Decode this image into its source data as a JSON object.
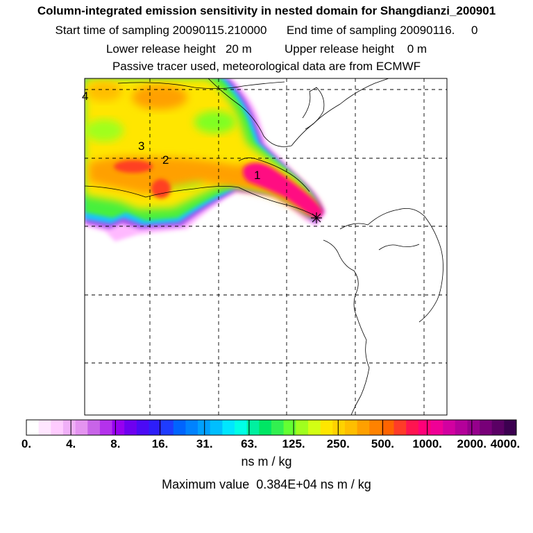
{
  "title": "Column-integrated emission sensitivity in nested domain for Shangdianzi_200901",
  "sampling": {
    "start_label": "Start time of sampling",
    "start_value": "20090115.210000",
    "end_label": "End time of sampling",
    "end_value": "20090116.",
    "end_hour": "0"
  },
  "release": {
    "lower_label": "Lower release height",
    "lower_value": "20 m",
    "upper_label": "Upper release height",
    "upper_value": "0 m"
  },
  "tracer_note": "Passive tracer used, meteorological data are from ECMWF",
  "units": "ns m / kg",
  "max_value_text": "Maximum value  0.384E+04 ns m / kg",
  "chart_data": {
    "type": "heatmap",
    "title": "Column-integrated emission sensitivity in nested domain for Shangdianzi_200901",
    "colorbar": {
      "tick_labels": [
        "0.",
        "4.",
        "8.",
        "16.",
        "31.",
        "63.",
        "125.",
        "250.",
        "500.",
        "1000.",
        "2000.",
        "4000."
      ],
      "units": "ns m / kg",
      "colors": [
        "#ffffff",
        "#ffe6ff",
        "#ffccff",
        "#f0b0f8",
        "#e494f0",
        "#c864e8",
        "#b432ec",
        "#9600f0",
        "#6e00f0",
        "#4b0af5",
        "#2d1efa",
        "#1e3cff",
        "#0064ff",
        "#0082ff",
        "#00a0ff",
        "#00beff",
        "#00e6ff",
        "#00ffe6",
        "#00f0a0",
        "#00e664",
        "#32f050",
        "#64ff32",
        "#a0ff1e",
        "#d2ff14",
        "#ffe600",
        "#ffd200",
        "#ffbe00",
        "#ffa000",
        "#ff8200",
        "#ff6400",
        "#ff3c28",
        "#ff1450",
        "#ff0078",
        "#f00096",
        "#d200a0",
        "#b4009a",
        "#96008c",
        "#780078",
        "#5a0064",
        "#3c0050"
      ]
    },
    "point_labels": [
      "1",
      "2",
      "3",
      "4"
    ],
    "receptor_marker": "*",
    "max_value": 3840,
    "grid": true
  }
}
